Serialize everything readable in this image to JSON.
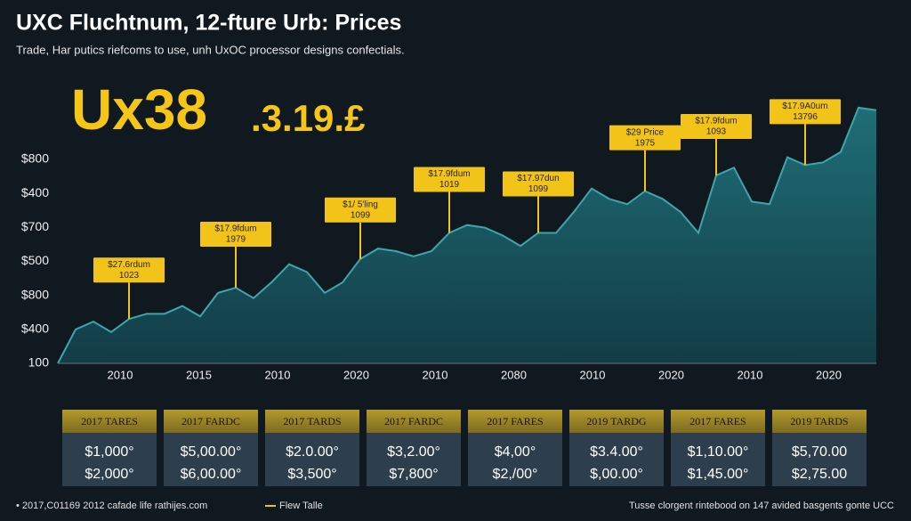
{
  "chart_data": {
    "type": "area",
    "title": "UXC Fluchtnum, 12-fture Urb: Prices",
    "subtitle": "Trade, Har putics riefcoms to use, unh UxOC processor designs confectials.",
    "headline": [
      "Ux38",
      ".3.19.£"
    ],
    "y_axis_labels": [
      "$800",
      "$400",
      "$700",
      "$500",
      "$800",
      "$400",
      "100"
    ],
    "x_axis_labels": [
      "2010",
      "2015",
      "2010",
      "2020",
      "2010",
      "2080",
      "2010",
      "2020",
      "2010",
      "2020"
    ],
    "values": [
      0,
      13,
      16,
      12,
      17,
      19,
      19,
      22,
      18,
      27,
      29,
      25,
      31,
      38,
      35,
      27,
      31,
      40,
      44,
      43,
      41,
      43,
      50,
      53,
      52,
      49,
      45,
      50,
      50,
      58,
      67,
      63,
      61,
      66,
      63,
      58,
      50,
      72,
      75,
      62,
      61,
      79,
      76,
      77,
      81,
      98,
      97
    ],
    "ylim": [
      0,
      100
    ],
    "color": "#1f6e76",
    "line_color": "#3fa4ab",
    "annotations": [
      {
        "lines": [
          "$27.6rdum",
          "1023"
        ],
        "index": 4
      },
      {
        "lines": [
          "$17.9fdum",
          "1979"
        ],
        "index": 10
      },
      {
        "lines": [
          "$1/ 5'ling",
          "1099"
        ],
        "index": 17
      },
      {
        "lines": [
          "$17.9fdum",
          "1019"
        ],
        "index": 22
      },
      {
        "lines": [
          "$17.97dun",
          "1099"
        ],
        "index": 27
      },
      {
        "lines": [
          "$29 Price",
          "1975"
        ],
        "index": 33
      },
      {
        "lines": [
          "$17.9fdum",
          "1093"
        ],
        "index": 37
      },
      {
        "lines": [
          "$17.9A0um",
          "13796"
        ],
        "index": 42
      }
    ],
    "annotation_color": "#f2c41a"
  },
  "table": {
    "cards": [
      {
        "header": "2017 TARES",
        "rows": [
          "$1,000°",
          "$2,000°"
        ]
      },
      {
        "header": "2017 FARDC",
        "rows": [
          "$5,00.00°",
          "$6,00.00°"
        ]
      },
      {
        "header": "2017 TARDS",
        "rows": [
          "$2.0.00°",
          "$3,500°"
        ]
      },
      {
        "header": "2017 FARDC",
        "rows": [
          "$3,2.00°",
          "$7,800°"
        ]
      },
      {
        "header": "2017 FARES",
        "rows": [
          "$4,00°",
          "$2,/00°"
        ]
      },
      {
        "header": "2019 TARDG",
        "rows": [
          "$3.4.00°",
          "$,00.00°"
        ]
      },
      {
        "header": "2017 FARES",
        "rows": [
          "$1,10.00°",
          "$1,45.00°"
        ]
      },
      {
        "header": "2019 TARDS",
        "rows": [
          "$5,70.00",
          "$2,75.00"
        ]
      }
    ]
  },
  "footer": {
    "left": "• 2017,C01169 2012 cafade life rathijes.com",
    "legend": "Flew Talle",
    "right": "Tusse clorgent rintebood on 147 avided basgents gonte UCC"
  }
}
